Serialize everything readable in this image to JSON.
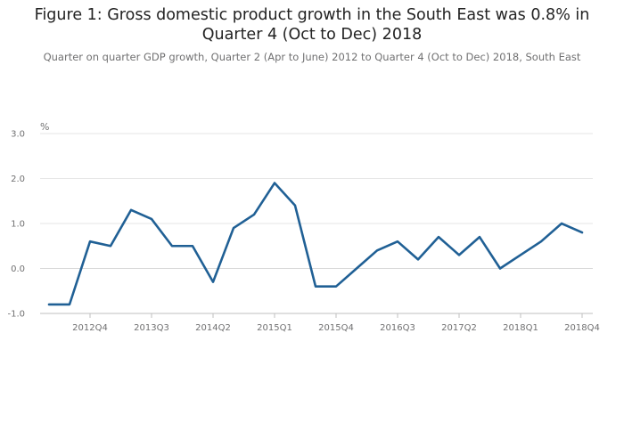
{
  "title_line1": "Figure 1: Gross domestic product growth in the South East was 0.8% in",
  "title_line2": "Quarter 4 (Oct to Dec) 2018",
  "subtitle": "Quarter on quarter GDP growth, Quarter 2 (Apr to June) 2012 to Quarter 4 (Oct to Dec) 2018, South East",
  "chart_data": {
    "type": "line",
    "title": "Figure 1: Gross domestic product growth in the South East was 0.8% in Quarter 4 (Oct to Dec) 2018",
    "subtitle": "Quarter on quarter GDP growth, Quarter 2 (Apr to June) 2012 to Quarter 4 (Oct to Dec) 2018, South East",
    "ylabel": "%",
    "xlabel": "",
    "ylim": [
      -1.0,
      3.0
    ],
    "yticks": [
      "3.0",
      "2.0",
      "1.0",
      "0.0",
      "-1.0"
    ],
    "ytick_values": [
      3.0,
      2.0,
      1.0,
      0.0,
      -1.0
    ],
    "xtick_labels": [
      "2012Q4",
      "2013Q3",
      "2014Q2",
      "2015Q1",
      "2015Q4",
      "2016Q3",
      "2017Q2",
      "2018Q1",
      "2018Q4"
    ],
    "x": [
      "2012Q2",
      "2012Q3",
      "2012Q4",
      "2013Q1",
      "2013Q2",
      "2013Q3",
      "2013Q4",
      "2014Q1",
      "2014Q2",
      "2014Q3",
      "2014Q4",
      "2015Q1",
      "2015Q2",
      "2015Q3",
      "2015Q4",
      "2016Q1",
      "2016Q2",
      "2016Q3",
      "2016Q4",
      "2017Q1",
      "2017Q2",
      "2017Q3",
      "2017Q4",
      "2018Q1",
      "2018Q2",
      "2018Q3",
      "2018Q4"
    ],
    "series": [
      {
        "values": [
          -0.8,
          -0.8,
          0.6,
          0.5,
          1.3,
          1.1,
          0.5,
          0.5,
          -0.3,
          0.9,
          1.2,
          1.9,
          1.4,
          -0.4,
          -0.4,
          0.0,
          0.4,
          0.6,
          0.2,
          0.7,
          0.3,
          0.7,
          0.0,
          0.3,
          0.6,
          1.0,
          0.8
        ],
        "color": "#206095"
      }
    ],
    "grid": true,
    "legend": "none"
  }
}
